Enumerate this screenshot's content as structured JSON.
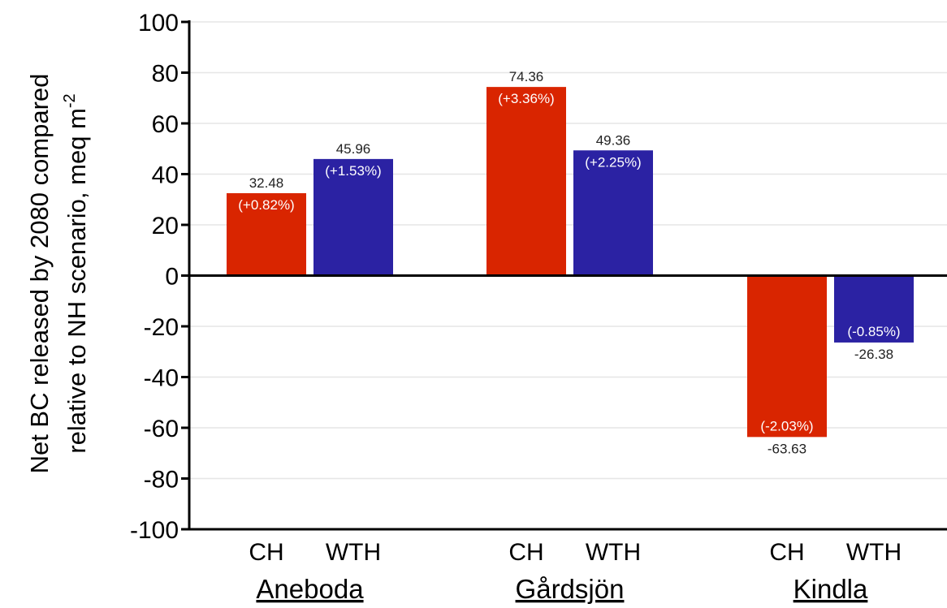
{
  "chart_data": {
    "type": "bar",
    "ylabel": [
      "Net BC released by 2080 compared",
      "relative to NH scenario, meq m"
    ],
    "ylabel_superscript": "-2",
    "ylim": [
      -100,
      100
    ],
    "yticks": [
      100,
      80,
      60,
      40,
      20,
      0,
      -20,
      -40,
      -60,
      -80,
      -100
    ],
    "grid": true,
    "groups": [
      {
        "name": "Aneboda",
        "bars": [
          {
            "label": "CH",
            "value": 32.48,
            "value_text": "32.48",
            "pct_text": "(+0.82%)"
          },
          {
            "label": "WTH",
            "value": 45.96,
            "value_text": "45.96",
            "pct_text": "(+1.53%)"
          }
        ]
      },
      {
        "name": "Gårdsjön",
        "bars": [
          {
            "label": "CH",
            "value": 74.36,
            "value_text": "74.36",
            "pct_text": "(+3.36%)"
          },
          {
            "label": "WTH",
            "value": 49.36,
            "value_text": "49.36",
            "pct_text": "(+2.25%)"
          }
        ]
      },
      {
        "name": "Kindla",
        "bars": [
          {
            "label": "CH",
            "value": -63.63,
            "value_text": "-63.63",
            "pct_text": "(-2.03%)"
          },
          {
            "label": "WTH",
            "value": -26.38,
            "value_text": "-26.38",
            "pct_text": "(-0.85%)"
          }
        ]
      }
    ],
    "colors": {
      "CH": "#d92500",
      "WTH": "#2b22a3"
    }
  }
}
